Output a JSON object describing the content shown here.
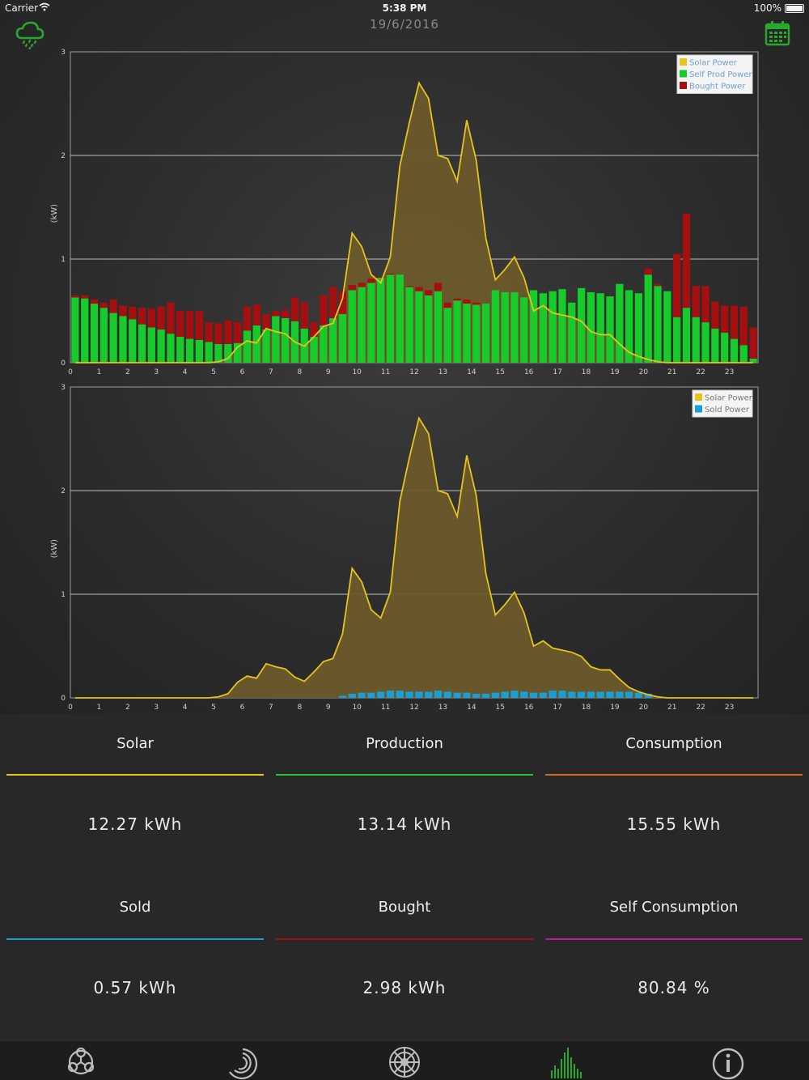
{
  "status_bar": {
    "carrier": "Carrier",
    "time": "5:38 PM",
    "battery": "100%"
  },
  "header": {
    "date": "19/6/2016",
    "weather_icon": "cloud-rain-icon",
    "calendar_icon": "calendar-icon"
  },
  "colors": {
    "solar": "#e6c31e",
    "solar_fill": "#6b5a2a",
    "self_prod": "#17cc2a",
    "bought": "#a50f0f",
    "sold": "#1a9ed6",
    "consumption": "#d2691e",
    "self_consumption": "#c0189a",
    "accent": "#29a82f"
  },
  "chart_data": [
    {
      "type": "bar",
      "ylabel": "(kW)",
      "ylim": [
        0,
        3
      ],
      "yticks": [
        "0",
        "1",
        "2",
        "3"
      ],
      "xticks": [
        "0",
        "1",
        "2",
        "3",
        "4",
        "5",
        "6",
        "7",
        "8",
        "9",
        "10",
        "11",
        "12",
        "13",
        "14",
        "15",
        "16",
        "17",
        "18",
        "19",
        "20",
        "21",
        "22",
        "23"
      ],
      "xlim": [
        0,
        24
      ],
      "grid": "horizontal",
      "legend_position": "top-right",
      "legend": [
        "Solar Power",
        "Self Prod Power",
        "Bought Power"
      ],
      "series": [
        {
          "name": "Self Prod Power",
          "kind": "bar",
          "values": [
            0.63,
            0.62,
            0.57,
            0.53,
            0.48,
            0.45,
            0.42,
            0.37,
            0.34,
            0.32,
            0.28,
            0.25,
            0.23,
            0.22,
            0.2,
            0.18,
            0.18,
            0.19,
            0.31,
            0.36,
            0.32,
            0.45,
            0.43,
            0.4,
            0.33,
            0.25,
            0.36,
            0.43,
            0.47,
            0.7,
            0.73,
            0.77,
            0.82,
            0.85,
            0.85,
            0.73,
            0.69,
            0.65,
            0.69,
            0.53,
            0.6,
            0.57,
            0.56,
            0.57,
            0.7,
            0.68,
            0.68,
            0.63,
            0.7,
            0.67,
            0.69,
            0.71,
            0.58,
            0.72,
            0.68,
            0.67,
            0.64,
            0.76,
            0.7,
            0.67,
            0.85,
            0.74,
            0.69,
            0.44,
            0.53,
            0.44,
            0.39,
            0.33,
            0.29,
            0.23,
            0.17,
            0.04
          ]
        },
        {
          "name": "Bought Power",
          "kind": "bar",
          "values": [
            0.02,
            0.03,
            0.04,
            0.05,
            0.13,
            0.1,
            0.12,
            0.16,
            0.18,
            0.22,
            0.3,
            0.25,
            0.27,
            0.28,
            0.19,
            0.2,
            0.23,
            0.2,
            0.23,
            0.2,
            0.15,
            0.05,
            0.08,
            0.23,
            0.25,
            0.14,
            0.29,
            0.3,
            0.22,
            0.05,
            0.04,
            0.04,
            0.01,
            0.01,
            0.0,
            0.01,
            0.04,
            0.05,
            0.08,
            0.05,
            0.02,
            0.04,
            0.02,
            0.0,
            0.0,
            0.0,
            0.0,
            0.0,
            0.0,
            0.0,
            0.0,
            0.0,
            0.0,
            0.0,
            0.0,
            0.0,
            0.0,
            0.0,
            0.0,
            0.0,
            0.06,
            0.02,
            0.0,
            0.61,
            0.91,
            0.3,
            0.35,
            0.26,
            0.26,
            0.32,
            0.37,
            0.3
          ]
        },
        {
          "name": "Solar Power",
          "kind": "line",
          "values": [
            0,
            0,
            0,
            0,
            0,
            0,
            0,
            0,
            0,
            0,
            0,
            0,
            0,
            0,
            0,
            0.01,
            0.04,
            0.15,
            0.21,
            0.19,
            0.33,
            0.3,
            0.28,
            0.2,
            0.16,
            0.25,
            0.35,
            0.38,
            0.62,
            1.25,
            1.12,
            0.85,
            0.77,
            1.02,
            1.9,
            2.32,
            2.7,
            2.55,
            2.0,
            1.97,
            1.75,
            2.34,
            1.95,
            1.2,
            0.8,
            0.9,
            1.02,
            0.82,
            0.5,
            0.55,
            0.48,
            0.46,
            0.44,
            0.4,
            0.3,
            0.27,
            0.27,
            0.18,
            0.1,
            0.06,
            0.03,
            0.01,
            0,
            0,
            0,
            0,
            0,
            0,
            0,
            0,
            0,
            0
          ]
        }
      ]
    },
    {
      "type": "bar",
      "ylabel": "(kW)",
      "ylim": [
        0,
        3
      ],
      "yticks": [
        "0",
        "1",
        "2",
        "3"
      ],
      "xticks": [
        "0",
        "1",
        "2",
        "3",
        "4",
        "5",
        "6",
        "7",
        "8",
        "9",
        "10",
        "11",
        "12",
        "13",
        "14",
        "15",
        "16",
        "17",
        "18",
        "19",
        "20",
        "21",
        "22",
        "23"
      ],
      "xlim": [
        0,
        24
      ],
      "grid": "horizontal",
      "legend_position": "top-right",
      "legend": [
        "Solar Power",
        "Sold Power"
      ],
      "series": [
        {
          "name": "Sold Power",
          "kind": "bar",
          "values": [
            0,
            0,
            0,
            0,
            0,
            0,
            0,
            0,
            0,
            0,
            0,
            0,
            0,
            0,
            0,
            0,
            0,
            0,
            0,
            0,
            0,
            0,
            0,
            0,
            0,
            0,
            0,
            0,
            0.02,
            0.04,
            0.05,
            0.05,
            0.06,
            0.07,
            0.07,
            0.06,
            0.06,
            0.06,
            0.07,
            0.06,
            0.05,
            0.05,
            0.04,
            0.04,
            0.05,
            0.06,
            0.07,
            0.06,
            0.05,
            0.05,
            0.07,
            0.07,
            0.06,
            0.06,
            0.06,
            0.06,
            0.06,
            0.06,
            0.06,
            0.05,
            0.04,
            0,
            0,
            0,
            0,
            0,
            0,
            0,
            0,
            0,
            0,
            0
          ]
        },
        {
          "name": "Solar Power",
          "kind": "line",
          "values": [
            0,
            0,
            0,
            0,
            0,
            0,
            0,
            0,
            0,
            0,
            0,
            0,
            0,
            0,
            0,
            0.01,
            0.04,
            0.15,
            0.21,
            0.19,
            0.33,
            0.3,
            0.28,
            0.2,
            0.16,
            0.25,
            0.35,
            0.38,
            0.62,
            1.25,
            1.12,
            0.85,
            0.77,
            1.02,
            1.9,
            2.32,
            2.7,
            2.55,
            2.0,
            1.97,
            1.75,
            2.34,
            1.95,
            1.2,
            0.8,
            0.9,
            1.02,
            0.82,
            0.5,
            0.55,
            0.48,
            0.46,
            0.44,
            0.4,
            0.3,
            0.27,
            0.27,
            0.18,
            0.1,
            0.06,
            0.03,
            0.01,
            0,
            0,
            0,
            0,
            0,
            0,
            0,
            0,
            0,
            0
          ]
        }
      ]
    }
  ],
  "summary": [
    {
      "label": "Solar",
      "value": "12.27 kWh",
      "color": "#e6c31e"
    },
    {
      "label": "Production",
      "value": "13.14 kWh",
      "color": "#29c42e"
    },
    {
      "label": "Consumption",
      "value": "15.55 kWh",
      "color": "#d2691e"
    },
    {
      "label": "Sold",
      "value": "0.57 kWh",
      "color": "#1a9ed6"
    },
    {
      "label": "Bought",
      "value": "2.98 kWh",
      "color": "#a50f0f"
    },
    {
      "label": "Self Consumption",
      "value": "80.84 %",
      "color": "#c0189a"
    }
  ],
  "tabs": [
    {
      "icon": "network-nodes-icon",
      "active": false
    },
    {
      "icon": "gauge-spiral-icon",
      "active": false
    },
    {
      "icon": "solar-wheel-icon",
      "active": false
    },
    {
      "icon": "bar-chart-icon",
      "active": true
    },
    {
      "icon": "info-icon",
      "active": false
    }
  ]
}
